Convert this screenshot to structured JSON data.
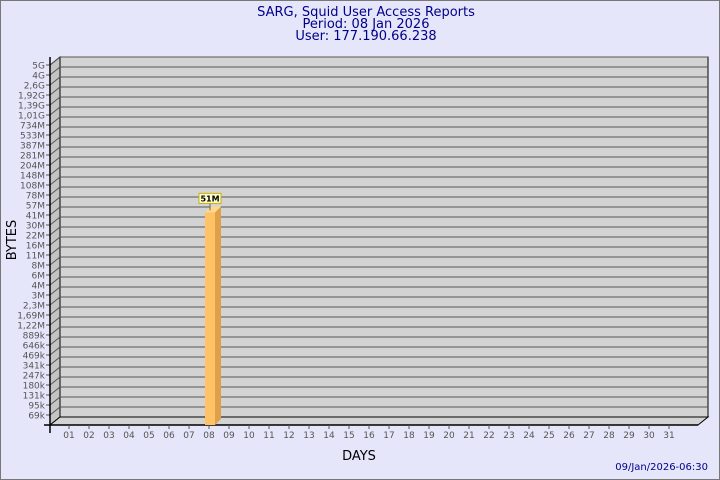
{
  "chart_data": {
    "type": "bar",
    "title": [
      "SARG, Squid User Access Reports",
      "Period: 08 Jan 2026",
      "User: 177.190.66.238"
    ],
    "xlabel": "DAYS",
    "ylabel": "BYTES",
    "y_scale": "log",
    "y_ticks": [
      "5G",
      "4G",
      "2,6G",
      "1,92G",
      "1,39G",
      "1,01G",
      "734M",
      "533M",
      "387M",
      "281M",
      "204M",
      "148M",
      "108M",
      "78M",
      "57M",
      "41M",
      "30M",
      "22M",
      "16M",
      "11M",
      "8M",
      "6M",
      "4M",
      "3M",
      "2,3M",
      "1,69M",
      "1,22M",
      "889k",
      "646k",
      "469k",
      "341k",
      "247k",
      "180k",
      "131k",
      "95k",
      "69k"
    ],
    "categories": [
      "01",
      "02",
      "03",
      "04",
      "05",
      "06",
      "07",
      "08",
      "09",
      "10",
      "11",
      "12",
      "13",
      "14",
      "15",
      "16",
      "17",
      "18",
      "19",
      "20",
      "21",
      "22",
      "23",
      "24",
      "25",
      "26",
      "27",
      "28",
      "29",
      "30",
      "31"
    ],
    "bars": [
      {
        "day": "08",
        "value": "51M"
      }
    ],
    "grid": true,
    "colors": {
      "bar": "#ffc266",
      "bar_side": "#e0a04a",
      "wall": "#d3d3d3",
      "title": "#00008b"
    }
  },
  "footer": {
    "timestamp": "09/Jan/2026-06:30"
  }
}
